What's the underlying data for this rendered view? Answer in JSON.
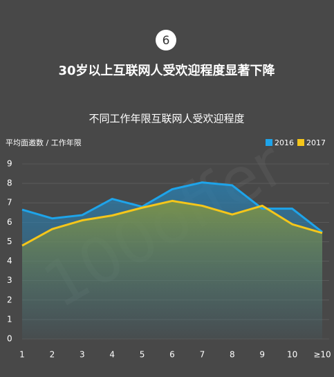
{
  "badge": "6",
  "headline": "30岁以上互联网人受欢迎程度显著下降",
  "watermark": "100offer",
  "chart_data": {
    "type": "line",
    "title": "不同工作年限互联网人受欢迎程度",
    "y_label": "平均面邀数 / 工作年限",
    "categories": [
      "1",
      "2",
      "3",
      "4",
      "5",
      "6",
      "7",
      "8",
      "9",
      "10",
      "≥10"
    ],
    "series": [
      {
        "name": "2016",
        "color": "#1ea4ea",
        "values": [
          6.65,
          6.2,
          6.37,
          7.2,
          6.8,
          7.7,
          8.05,
          7.9,
          6.7,
          6.7,
          5.5
        ]
      },
      {
        "name": "2017",
        "color": "#f5c61a",
        "values": [
          4.8,
          5.65,
          6.1,
          6.35,
          6.75,
          7.1,
          6.85,
          6.4,
          6.85,
          5.9,
          5.45
        ]
      }
    ],
    "ylim": [
      0,
      9
    ],
    "yticks": [
      0,
      1,
      2,
      3,
      4,
      5,
      6,
      7,
      8,
      9
    ],
    "grid": true,
    "legend": "top-right"
  }
}
